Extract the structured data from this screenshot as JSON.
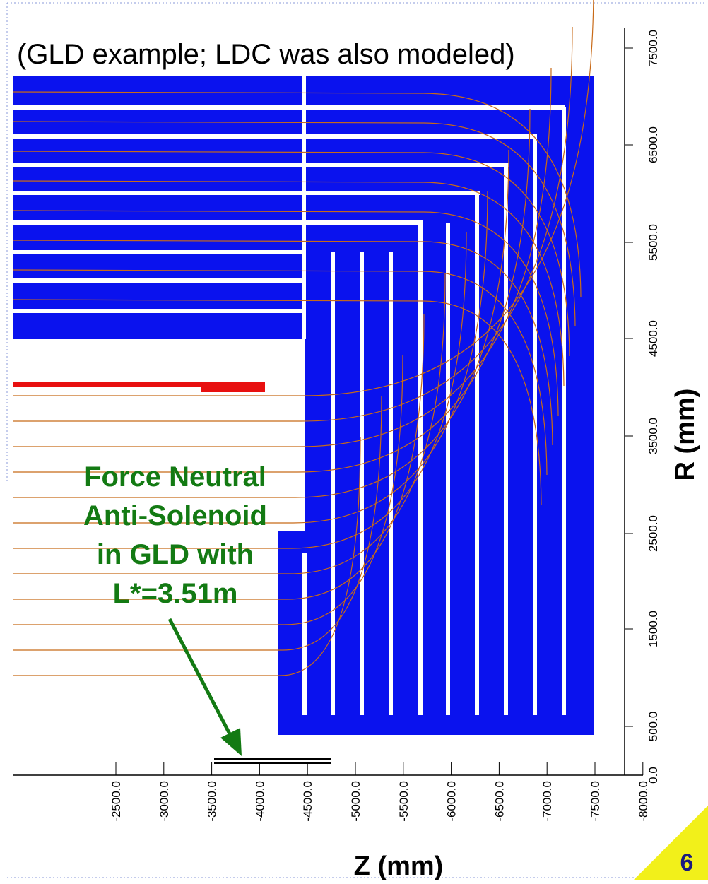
{
  "title": "(GLD example; LDC was also modeled)",
  "r_axis": {
    "label": "R (mm)",
    "ticks": [
      "0.0",
      "500.0",
      "1500.0",
      "2500.0",
      "3500.0",
      "4500.0",
      "5500.0",
      "6500.0",
      "7500.0"
    ]
  },
  "z_axis": {
    "label": "Z (mm)",
    "ticks": [
      "-2500.0",
      "-3000.0",
      "-3500.0",
      "-4000.0",
      "-4500.0",
      "-5000.0",
      "-5500.0",
      "-6000.0",
      "-6500.0",
      "-7000.0",
      "-7500.0",
      "-8000.0"
    ]
  },
  "annotation": {
    "lines": [
      "Force Neutral",
      "Anti-Solenoid",
      "in GLD with",
      "L*=3.51m"
    ]
  },
  "page_number": "6"
}
